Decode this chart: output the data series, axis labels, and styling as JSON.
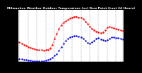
{
  "title": "Milwaukee Weather Outdoor Temperature (vs) Dew Point (Last 24 Hours)",
  "title_fontsize": 3.2,
  "background_color": "#000000",
  "plot_bg_color": "#ffffff",
  "grid_color": "#888888",
  "temp_color": "#ff0000",
  "dew_color": "#0000dd",
  "black_color": "#000000",
  "ylim": [
    -10,
    75
  ],
  "ytick_values": [
    0,
    10,
    20,
    30,
    40,
    50,
    60,
    70
  ],
  "ylabel_fontsize": 2.8,
  "xlabel_fontsize": 2.3,
  "num_points": 48,
  "x_labels": [
    "12",
    "",
    "1",
    "",
    "2",
    "",
    "3",
    "",
    "4",
    "",
    "5",
    "",
    "6",
    "",
    "7",
    "",
    "8",
    "",
    "9",
    "",
    "10",
    "",
    "11",
    "",
    "12",
    "",
    "1",
    "",
    "2",
    "",
    "3",
    "",
    "4",
    "",
    "5",
    "",
    "6",
    "",
    "7",
    "",
    "8",
    "",
    "9",
    "",
    "10",
    "",
    "11",
    "",
    "12"
  ],
  "temp_data": [
    22,
    20,
    18,
    16,
    14,
    13,
    12,
    11,
    10,
    9,
    9,
    8,
    9,
    10,
    12,
    18,
    28,
    36,
    44,
    50,
    54,
    57,
    59,
    61,
    63,
    64,
    64,
    63,
    62,
    60,
    56,
    52,
    48,
    44,
    42,
    40,
    38,
    37,
    38,
    42,
    46,
    47,
    46,
    45,
    44,
    43,
    42,
    41
  ],
  "dew_data": [
    -5,
    -6,
    -7,
    -7,
    -8,
    -8,
    -9,
    -9,
    -9,
    -9,
    -9,
    -9,
    -8,
    -7,
    -5,
    -3,
    0,
    3,
    8,
    14,
    20,
    25,
    28,
    30,
    31,
    32,
    32,
    31,
    30,
    28,
    24,
    21,
    20,
    22,
    25,
    28,
    29,
    27,
    26,
    25,
    26,
    28,
    30,
    30,
    29,
    29,
    28,
    27
  ],
  "grid_positions": [
    0,
    4,
    8,
    12,
    16,
    20,
    24,
    28,
    32,
    36,
    40,
    44,
    47
  ]
}
